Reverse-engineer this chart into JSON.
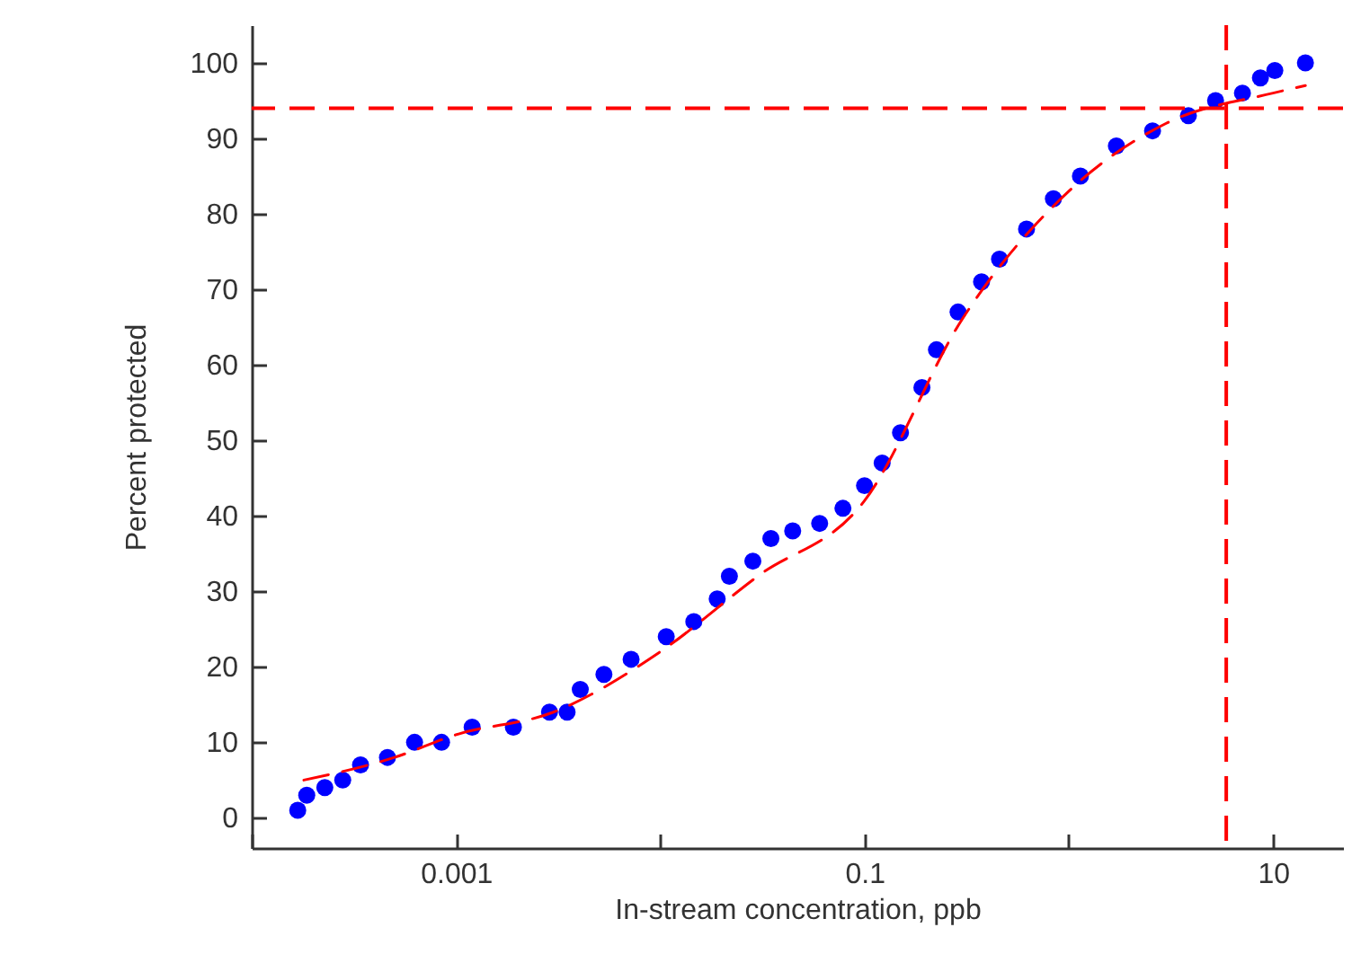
{
  "chart_data": {
    "type": "scatter",
    "xlabel": "In-stream concentration, ppb",
    "ylabel": "Percent protected",
    "log": "x",
    "grid": false,
    "xlim": [
      0.0001,
      22
    ],
    "xticks": [
      {
        "value": 0.0001,
        "label": null
      },
      0.001,
      {
        "value": 0.01,
        "label": null
      },
      0.1,
      {
        "value": 1,
        "label": null
      },
      10
    ],
    "ylim": [
      -4,
      105
    ],
    "yticks": [
      0,
      10,
      20,
      30,
      40,
      50,
      60,
      70,
      80,
      90,
      100
    ],
    "series": [
      {
        "marker": "circle",
        "color": "#0000ff",
        "x": [
          0.000168,
          0.000186,
          0.000228,
          0.000279,
          0.000341,
          0.000462,
          0.000627,
          0.00085,
          0.0012,
          0.00191,
          0.00287,
          0.0035,
          0.00406,
          0.0053,
          0.0072,
          0.0107,
          0.0146,
          0.019,
          0.0218,
          0.0284,
          0.0348,
          0.0445,
          0.0603,
          0.0784,
          0.1,
          0.122,
          0.15,
          0.191,
          0.225,
          0.287,
          0.374,
          0.458,
          0.621,
          0.841,
          1.14,
          1.71,
          2.57,
          3.85,
          5.23,
          7.08,
          8.67,
          10.2,
          14.4
        ],
        "values": [
          1,
          3,
          4,
          5,
          7,
          8,
          10,
          10,
          12,
          12,
          14,
          14,
          17,
          19,
          21,
          24,
          26,
          29,
          32,
          34,
          37,
          38,
          39,
          41,
          44,
          47,
          51,
          57,
          62,
          67,
          71,
          74,
          78,
          82,
          85,
          89,
          91,
          93,
          95,
          96,
          98,
          99,
          100
        ]
      },
      {
        "type": "line",
        "color": "#ff0000",
        "line_style": "dashed",
        "x": [
          0.00018,
          0.0005,
          0.001,
          0.003,
          0.01,
          0.03,
          0.1,
          0.3,
          1,
          3,
          10,
          14.4
        ],
        "values": [
          5,
          8,
          11,
          14,
          22,
          32,
          42,
          66,
          83,
          92,
          96,
          97
        ]
      }
    ],
    "ref_lines": [
      {
        "axis": "y",
        "value": 94,
        "color": "#ff0000",
        "line_style": "dashed"
      },
      {
        "axis": "x",
        "value": 5.9,
        "color": "#ff0000",
        "line_style": "dashed"
      }
    ]
  }
}
